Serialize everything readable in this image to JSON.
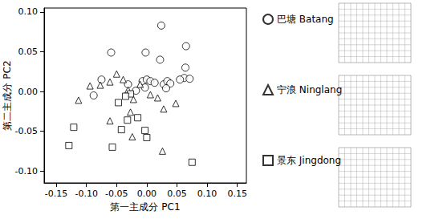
{
  "chart_data": {
    "type": "scatter",
    "xlabel": "第一主成分 PC1",
    "ylabel": "第二主成分 PC2",
    "xlim": [
      -0.17,
      0.165
    ],
    "ylim": [
      -0.115,
      0.105
    ],
    "xticks": [
      {
        "value": -0.15,
        "label": "-0.15"
      },
      {
        "value": -0.1,
        "label": "-0.10"
      },
      {
        "value": -0.05,
        "label": "-0.05"
      },
      {
        "value": 0,
        "label": "0.00"
      },
      {
        "value": 0.05,
        "label": "0.05"
      },
      {
        "value": 0.1,
        "label": "0.10"
      },
      {
        "value": 0.15,
        "label": "0.15"
      }
    ],
    "yticks": [
      {
        "value": -0.1,
        "label": "-0.10"
      },
      {
        "value": -0.05,
        "label": "-0.05"
      },
      {
        "value": 0,
        "label": "0.00"
      },
      {
        "value": 0.05,
        "label": "0.05"
      },
      {
        "value": 0.1,
        "label": "0.10"
      }
    ],
    "grid": false,
    "legend": "right",
    "series": [
      {
        "name": "巴塘 Batang",
        "color": "#000000",
        "marker": "circle",
        "x": [
          0.024,
          0.065,
          -0.059,
          -0.002,
          0.022,
          -0.075,
          -0.088,
          -0.031,
          -0.007,
          0.0,
          0.006,
          0.013,
          0.028,
          0.034,
          0.039,
          0.062,
          0.071,
          0.064,
          0.055,
          -0.003,
          -0.018,
          0.032
        ],
        "y": [
          0.083,
          0.057,
          0.049,
          0.049,
          0.04,
          0.015,
          -0.005,
          0.009,
          0.013,
          0.015,
          0.013,
          0.011,
          0.009,
          0.013,
          0.01,
          0.017,
          0.016,
          0.03,
          0.015,
          0.005,
          0.001,
          0.004
        ]
      },
      {
        "name": "宁浪 Ninglang",
        "color": "#000000",
        "marker": "triangle",
        "x": [
          -0.094,
          -0.113,
          -0.05,
          -0.077,
          -0.061,
          -0.039,
          -0.011,
          -0.031,
          -0.061,
          -0.022,
          -0.027,
          -0.024,
          0.018,
          0.028,
          0.048,
          0.026,
          0.006
        ],
        "y": [
          0.007,
          -0.011,
          0.022,
          0.008,
          0.012,
          0.015,
          0.009,
          0.002,
          -0.037,
          -0.01,
          -0.026,
          -0.057,
          -0.008,
          -0.022,
          -0.015,
          -0.075,
          -0.004
        ]
      },
      {
        "name": "景东 Jingdong",
        "color": "#000000",
        "marker": "square",
        "x": [
          -0.121,
          -0.129,
          -0.057,
          -0.047,
          -0.032,
          -0.015,
          -0.003,
          0.0,
          -0.042,
          0.075,
          -0.027,
          -0.035
        ],
        "y": [
          -0.045,
          -0.068,
          -0.07,
          -0.014,
          -0.036,
          -0.033,
          -0.049,
          -0.058,
          -0.048,
          -0.089,
          -0.003,
          -0.006
        ]
      }
    ]
  }
}
